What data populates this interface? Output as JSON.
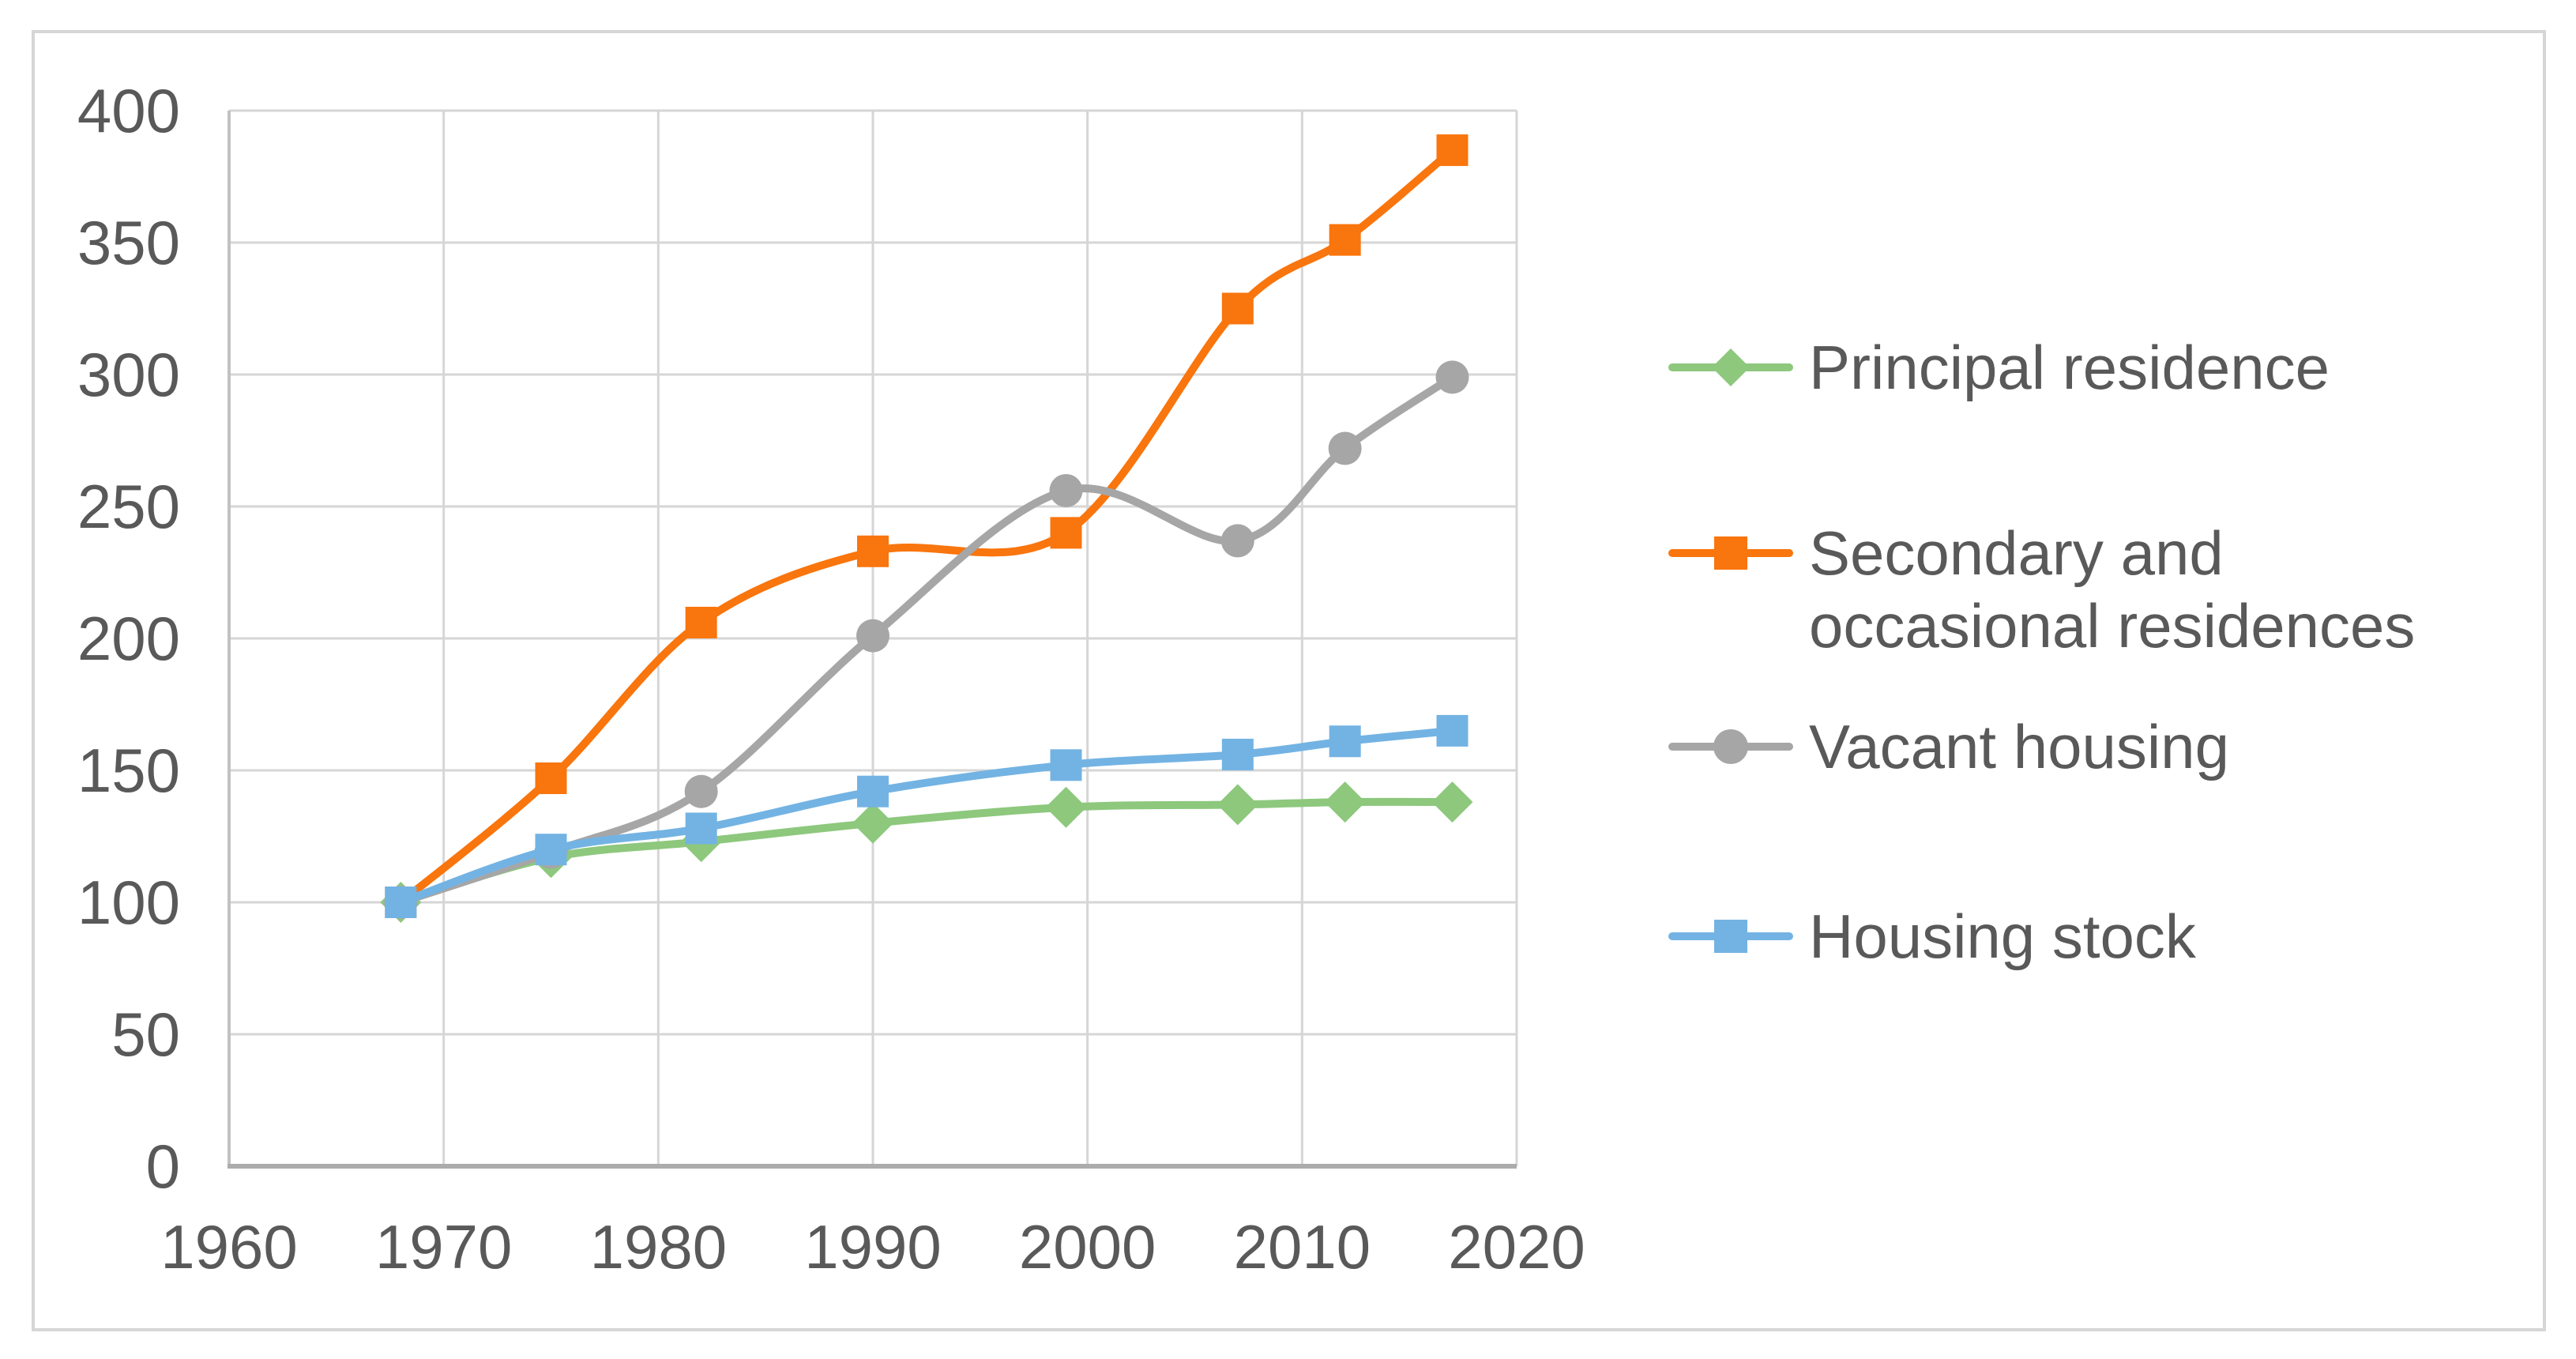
{
  "chart_data": {
    "type": "line",
    "smooth": true,
    "grid": true,
    "legend_position": "right",
    "title": "",
    "xlabel": "",
    "ylabel": "",
    "x": [
      1968,
      1975,
      1982,
      1990,
      1999,
      2007,
      2012,
      2017
    ],
    "series": [
      {
        "name": "Principal residence",
        "color": "#8DC87D",
        "marker": "diamond",
        "values": [
          100,
          117,
          123,
          130,
          136,
          137,
          138,
          138
        ]
      },
      {
        "name": "Secondary and occasional residences",
        "color": "#F9750D",
        "marker": "square",
        "values": [
          100,
          147,
          206,
          233,
          240,
          325,
          351,
          385
        ]
      },
      {
        "name": "Vacant housing",
        "color": "#A6A6A6",
        "marker": "circle",
        "values": [
          100,
          119,
          142,
          201,
          256,
          237,
          272,
          299
        ]
      },
      {
        "name": "Housing stock",
        "color": "#73B3E3",
        "marker": "square",
        "values": [
          100,
          120,
          128,
          142,
          152,
          156,
          161,
          165
        ]
      }
    ],
    "x_axis": {
      "min": 1960,
      "max": 2020,
      "step": 10,
      "tick_labels": [
        "1960",
        "1970",
        "1980",
        "1990",
        "2000",
        "2010",
        "2020"
      ]
    },
    "y_axis": {
      "min": 0,
      "max": 400,
      "step": 50,
      "tick_labels": [
        "0",
        "50",
        "100",
        "150",
        "200",
        "250",
        "300",
        "350",
        "400"
      ]
    }
  },
  "legend": {
    "items": [
      {
        "label": "Principal residence",
        "marker": "diamond-marker-icon"
      },
      {
        "label": "Secondary and occasional residences",
        "marker": "square-marker-icon"
      },
      {
        "label": "Vacant housing",
        "marker": "circle-marker-icon"
      },
      {
        "label": "Housing stock",
        "marker": "square-marker-icon"
      }
    ]
  },
  "colors": {
    "gridline": "#D6D6D6",
    "axis_line_x": "#ACACAC",
    "axis_line_y": "#C2C2C2",
    "tick_label": "#595959",
    "frame_border": "#D6D6D6",
    "background": "#FFFFFF"
  }
}
